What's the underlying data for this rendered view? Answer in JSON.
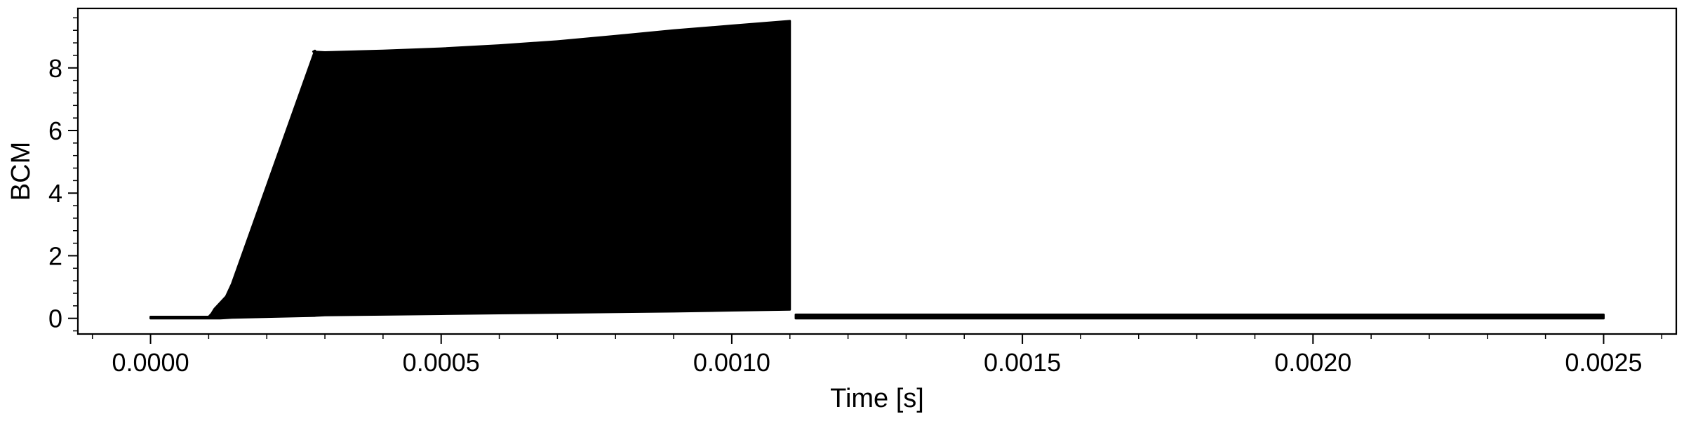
{
  "chart_data": {
    "type": "area",
    "title": "",
    "xlabel": "Time [s]",
    "ylabel": "BCM",
    "xlim": [
      -0.000125,
      0.002625
    ],
    "ylim": [
      -0.5,
      9.9
    ],
    "x_ticks": [
      0.0,
      0.0005,
      0.001,
      0.0015,
      0.002,
      0.0025
    ],
    "x_tick_labels": [
      "0.0000",
      "0.0005",
      "0.0010",
      "0.0015",
      "0.0020",
      "0.0025"
    ],
    "x_minor_step": 0.0001,
    "y_ticks": [
      0,
      2,
      4,
      6,
      8
    ],
    "y_tick_labels": [
      "0",
      "2",
      "4",
      "6",
      "8"
    ],
    "y_minor_step": 0.4,
    "grid": false,
    "legend": "none",
    "color": "#000000",
    "series": [
      {
        "kind": "envelope",
        "x": [
          0.0,
          0.0001,
          0.000105,
          0.00011,
          0.00012,
          0.00013,
          0.00014,
          0.000283,
          0.00028,
          0.0003,
          0.0004,
          0.0005,
          0.0006,
          0.0007,
          0.0008,
          0.0009,
          0.001,
          0.0011
        ],
        "upper": [
          0.05,
          0.05,
          0.15,
          0.3,
          0.5,
          0.7,
          1.1,
          8.55,
          8.52,
          8.5,
          8.55,
          8.62,
          8.72,
          8.85,
          9.02,
          9.2,
          9.35,
          9.5
        ],
        "lower": [
          0.0,
          0.0,
          0.0,
          0.0,
          0.0,
          0.01,
          0.02,
          0.08,
          0.08,
          0.1,
          0.12,
          0.14,
          0.16,
          0.18,
          0.2,
          0.22,
          0.25,
          0.28
        ]
      },
      {
        "kind": "band",
        "x": [
          0.00111,
          0.0025
        ],
        "upper": [
          0.12,
          0.12
        ],
        "lower": [
          0.0,
          0.0
        ]
      }
    ]
  }
}
